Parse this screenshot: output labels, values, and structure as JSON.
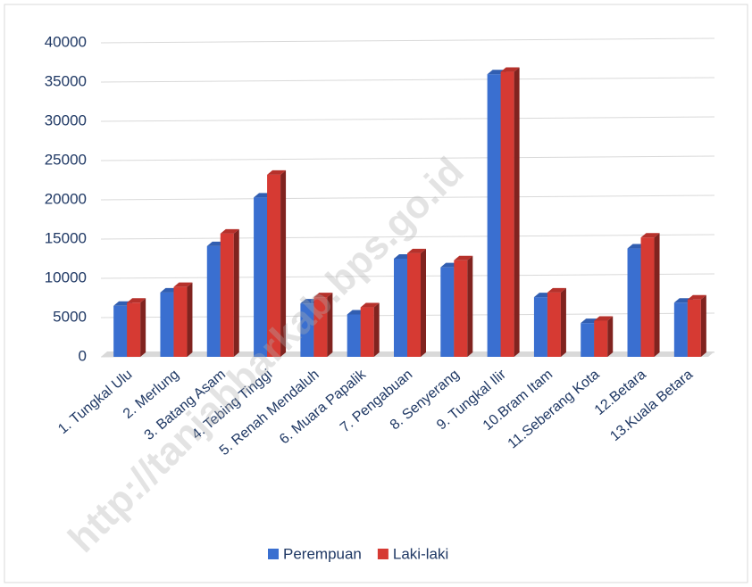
{
  "chart_data": {
    "type": "bar",
    "categories": [
      "1. Tungkal Ulu",
      "2.  Merlung",
      "3.  Batang Asam",
      "4. Tebing Tinggi",
      "5. Renah Mendaluh",
      "6.  Muara Papalik",
      "7.  Pengabuan",
      "8.  Senyerang",
      "9.  Tungkal Ilir",
      "10.Bram Itam",
      "11.Seberang Kota",
      "12.Betara",
      "13.Kuala Betara"
    ],
    "series": [
      {
        "name": "Perempuan",
        "color": "#3a6fd0",
        "values": [
          6500,
          8200,
          14100,
          20300,
          6800,
          5400,
          12500,
          11400,
          36000,
          7600,
          4300,
          13800,
          6900
        ]
      },
      {
        "name": "Laki-laki",
        "color": "#d63a33",
        "values": [
          6900,
          8900,
          15700,
          23200,
          7600,
          6300,
          13200,
          12300,
          36300,
          8200,
          4600,
          15200,
          7300
        ]
      }
    ],
    "ylim": [
      0,
      40000
    ],
    "yticks": [
      0,
      5000,
      10000,
      15000,
      20000,
      25000,
      30000,
      35000,
      40000
    ],
    "grid": true,
    "legend": "bottom",
    "watermark": "http://tanjabbarkab.bps.go.id"
  }
}
